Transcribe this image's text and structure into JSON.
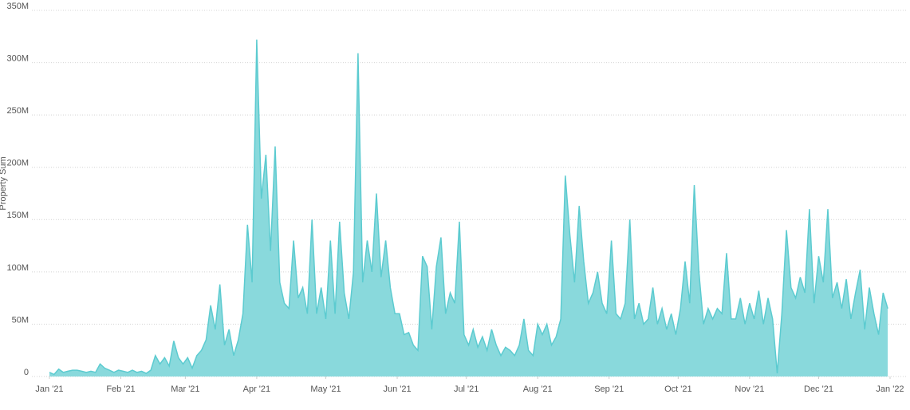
{
  "chart_data": {
    "type": "area",
    "y_label": "Property Sum",
    "color": "#89d9dc",
    "line_color": "#5ccbd0",
    "grid": true,
    "xlim": [
      0,
      365
    ],
    "xticks": [
      {
        "value": 0,
        "label": "Jan '21"
      },
      {
        "value": 31,
        "label": "Feb '21"
      },
      {
        "value": 59,
        "label": "Mar '21"
      },
      {
        "value": 90,
        "label": "Apr '21"
      },
      {
        "value": 120,
        "label": "May '21"
      },
      {
        "value": 151,
        "label": "Jun '21"
      },
      {
        "value": 181,
        "label": "Jul '21"
      },
      {
        "value": 212,
        "label": "Aug '21"
      },
      {
        "value": 243,
        "label": "Sep '21"
      },
      {
        "value": 273,
        "label": "Oct '21"
      },
      {
        "value": 304,
        "label": "Nov '21"
      },
      {
        "value": 334,
        "label": "Dec '21"
      },
      {
        "value": 365,
        "label": "Jan '22"
      }
    ],
    "ylim": [
      0,
      350
    ],
    "yticks": [
      0,
      {
        "value": 50,
        "label": "50M"
      },
      {
        "value": 100,
        "label": "100M"
      },
      {
        "value": 150,
        "label": "150M"
      },
      {
        "value": 200,
        "label": "200M"
      },
      {
        "value": 250,
        "label": "250M"
      },
      {
        "value": 300,
        "label": "300M"
      },
      {
        "value": 350,
        "label": "350M"
      }
    ],
    "x": [
      0,
      2,
      4,
      6,
      8,
      10,
      12,
      14,
      16,
      18,
      20,
      22,
      24,
      26,
      28,
      30,
      32,
      34,
      36,
      38,
      40,
      42,
      44,
      46,
      48,
      50,
      52,
      54,
      56,
      58,
      60,
      62,
      64,
      66,
      68,
      70,
      72,
      74,
      76,
      78,
      80,
      82,
      84,
      86,
      88,
      90,
      92,
      94,
      96,
      98,
      100,
      102,
      104,
      106,
      108,
      110,
      112,
      114,
      116,
      118,
      120,
      122,
      124,
      126,
      128,
      130,
      132,
      134,
      136,
      138,
      140,
      142,
      144,
      146,
      148,
      150,
      152,
      154,
      156,
      158,
      160,
      162,
      164,
      166,
      168,
      170,
      172,
      174,
      176,
      178,
      180,
      182,
      184,
      186,
      188,
      190,
      192,
      194,
      196,
      198,
      200,
      202,
      204,
      206,
      208,
      210,
      212,
      214,
      216,
      218,
      220,
      222,
      224,
      226,
      228,
      230,
      232,
      234,
      236,
      238,
      240,
      242,
      244,
      246,
      248,
      250,
      252,
      254,
      256,
      258,
      260,
      262,
      264,
      266,
      268,
      270,
      272,
      274,
      276,
      278,
      280,
      282,
      284,
      286,
      288,
      290,
      292,
      294,
      296,
      298,
      300,
      302,
      304,
      306,
      308,
      310,
      312,
      314,
      316,
      318,
      320,
      322,
      324,
      326,
      328,
      330,
      332,
      334,
      336,
      338,
      340,
      342,
      344,
      346,
      348,
      350,
      352,
      354,
      356,
      358,
      360,
      362,
      364
    ],
    "values": [
      4,
      2,
      7,
      4,
      5,
      6,
      6,
      5,
      4,
      5,
      4,
      12,
      8,
      6,
      4,
      6,
      5,
      4,
      6,
      4,
      5,
      3,
      6,
      20,
      12,
      18,
      10,
      34,
      18,
      12,
      18,
      8,
      20,
      25,
      35,
      68,
      45,
      88,
      30,
      45,
      20,
      35,
      60,
      145,
      90,
      322,
      170,
      212,
      120,
      220,
      90,
      70,
      65,
      130,
      75,
      85,
      60,
      150,
      60,
      85,
      55,
      130,
      60,
      148,
      80,
      55,
      100,
      309,
      90,
      130,
      100,
      175,
      95,
      130,
      85,
      60,
      60,
      40,
      42,
      30,
      25,
      115,
      105,
      45,
      105,
      133,
      60,
      80,
      70,
      148,
      40,
      30,
      45,
      28,
      38,
      25,
      45,
      30,
      20,
      28,
      25,
      20,
      30,
      55,
      25,
      20,
      50,
      40,
      50,
      30,
      38,
      55,
      192,
      135,
      90,
      163,
      110,
      70,
      80,
      100,
      70,
      60,
      130,
      60,
      55,
      70,
      150,
      55,
      70,
      50,
      55,
      85,
      50,
      65,
      45,
      60,
      40,
      65,
      110,
      70,
      183,
      100,
      50,
      65,
      55,
      65,
      60,
      118,
      55,
      55,
      75,
      50,
      70,
      55,
      82,
      50,
      75,
      55,
      3,
      60,
      140,
      85,
      75,
      95,
      80,
      160,
      70,
      115,
      90,
      160,
      75,
      90,
      65,
      93,
      55,
      80,
      102,
      45,
      85,
      60,
      40,
      80,
      65
    ]
  }
}
